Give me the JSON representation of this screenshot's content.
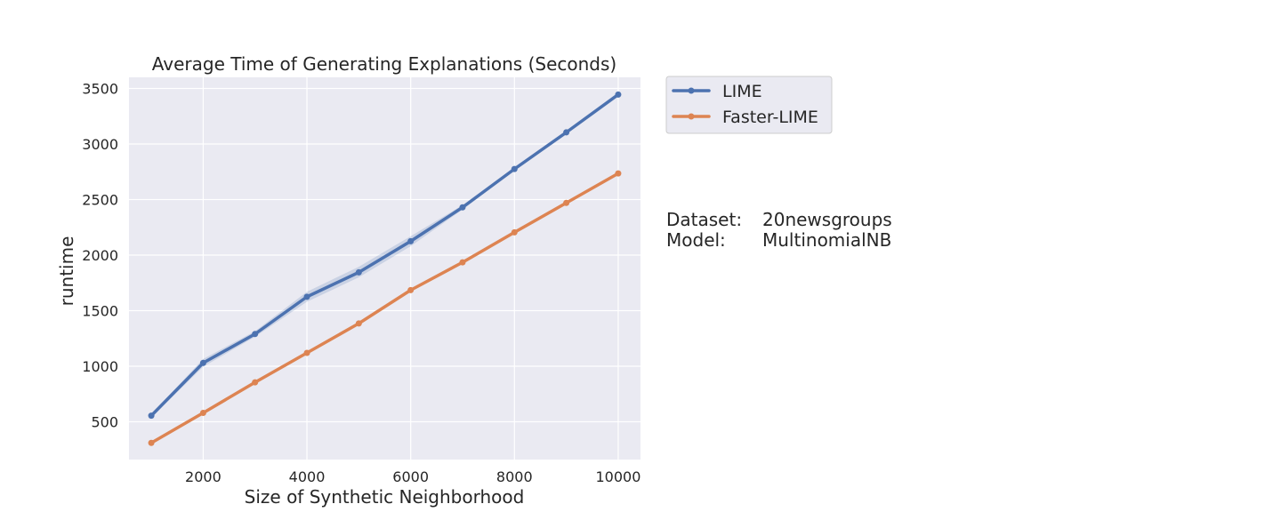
{
  "chart_data": {
    "type": "line",
    "title": "Average Time of Generating Explanations (Seconds)",
    "xlabel": "Size of Synthetic Neighborhood",
    "ylabel": "runtime",
    "xlim": [
      570,
      10430
    ],
    "ylim": [
      160,
      3600
    ],
    "xticks": [
      2000,
      4000,
      6000,
      8000,
      10000
    ],
    "yticks": [
      500,
      1000,
      1500,
      2000,
      2500,
      3000,
      3500
    ],
    "grid": true,
    "legend_position": "outside-upper-right",
    "x": [
      1000,
      2000,
      3000,
      4000,
      5000,
      6000,
      7000,
      8000,
      9000,
      10000
    ],
    "series": [
      {
        "name": "LIME",
        "color": "#4c72b0",
        "values": [
          555,
          1030,
          1290,
          1625,
          1845,
          2125,
          2430,
          2775,
          3105,
          3445
        ],
        "ci_low": [
          540,
          995,
          1265,
          1580,
          1800,
          2080,
          2410,
          2760,
          3090,
          3425
        ],
        "ci_high": [
          570,
          1065,
          1315,
          1670,
          1895,
          2170,
          2450,
          2790,
          3120,
          3465
        ]
      },
      {
        "name": "Faster-LIME",
        "color": "#dd8452",
        "values": [
          310,
          580,
          855,
          1120,
          1385,
          1685,
          1935,
          2205,
          2470,
          2735
        ]
      }
    ],
    "annotations": [
      {
        "label": "Dataset:",
        "value": "20newsgroups"
      },
      {
        "label": "Model:",
        "value": "MultinomialNB"
      }
    ]
  }
}
